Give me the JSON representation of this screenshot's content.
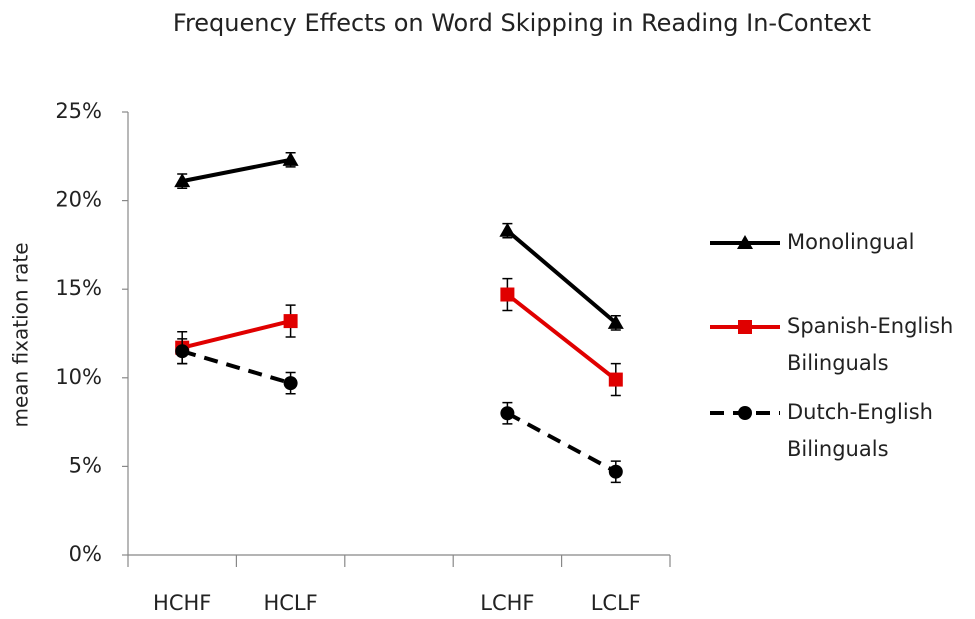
{
  "chart_data": {
    "type": "line",
    "title": "Frequency Effects on Word Skipping in Reading In-Context",
    "y_label": "mean fixation rate",
    "categories": [
      "HCHF",
      "HCLF",
      null,
      "LCHF",
      "LCLF"
    ],
    "series": [
      {
        "name": "Monolingual",
        "color": "#000000",
        "marker": "triangle",
        "dashed": false,
        "values": [
          21.1,
          22.3,
          null,
          18.3,
          13.1
        ],
        "errors": [
          0.4,
          0.4,
          null,
          0.4,
          0.4
        ]
      },
      {
        "name": "Spanish-English Bilinguals",
        "color": "#e00000",
        "marker": "square",
        "dashed": false,
        "values": [
          11.7,
          13.2,
          null,
          14.7,
          9.9
        ],
        "errors": [
          0.9,
          0.9,
          null,
          0.9,
          0.9
        ]
      },
      {
        "name": "Dutch-English Bilinguals",
        "color": "#000000",
        "marker": "circle",
        "dashed": true,
        "values": [
          11.5,
          9.7,
          null,
          8.0,
          4.7
        ],
        "errors": [
          0.7,
          0.6,
          null,
          0.6,
          0.6
        ]
      }
    ],
    "ylim": [
      0,
      25
    ],
    "yticks": [
      {
        "value": 0,
        "label": "0%"
      },
      {
        "value": 5,
        "label": "5%"
      },
      {
        "value": 10,
        "label": "10%"
      },
      {
        "value": 15,
        "label": "15%"
      },
      {
        "value": 20,
        "label": "20%"
      },
      {
        "value": 25,
        "label": "25%"
      }
    ],
    "grid": false,
    "legend": "right"
  }
}
